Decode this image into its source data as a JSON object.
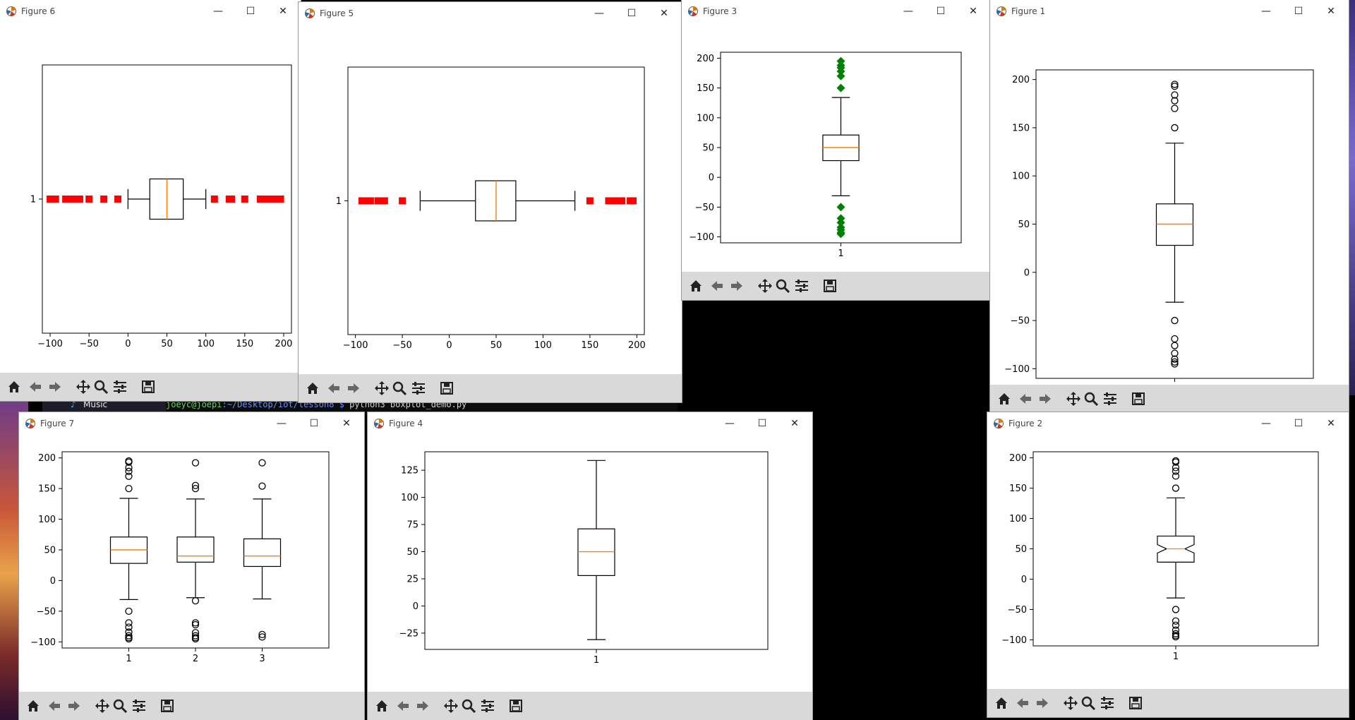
{
  "terminal": {
    "tab_label": "Music",
    "user_host": "joeyc@joepi",
    "path": ":~/Desktop/iot/lesson8 $",
    "command": " python3 boxplot_demo.py"
  },
  "windows": {
    "f6": {
      "title": "Figure 6"
    },
    "f5": {
      "title": "Figure 5"
    },
    "f3": {
      "title": "Figure 3"
    },
    "f1": {
      "title": "Figure 1"
    },
    "f7": {
      "title": "Figure 7"
    },
    "f4": {
      "title": "Figure 4"
    },
    "f2": {
      "title": "Figure 2"
    }
  },
  "controls": {
    "minimize": "—",
    "maximize": "☐",
    "close": "✕"
  },
  "toolbar_icons": [
    "home-icon",
    "back-icon",
    "forward-icon",
    "pan-icon",
    "zoom-icon",
    "configure-subplots-icon",
    "save-icon"
  ],
  "colors": {
    "median": "#ff7f0e",
    "flier_red": "#ff0000",
    "flier_green": "#008000",
    "toolbar_bg": "#d9d9d9"
  },
  "chart_data": [
    {
      "id": "f6",
      "type": "box",
      "orientation": "horizontal",
      "categories": [
        "1"
      ],
      "xlim": [
        -110,
        210
      ],
      "ticks": [
        -100,
        -50,
        0,
        50,
        100,
        150,
        200
      ],
      "boxes": [
        {
          "whisker_low": 0,
          "q1": 28,
          "median": 50,
          "q3": 71,
          "whisker_high": 100
        }
      ],
      "fliers": [
        [
          -100,
          -97,
          -93,
          -80,
          -76,
          -73,
          -69,
          -62,
          -50,
          -31,
          -13,
          111,
          130,
          133,
          150,
          170,
          175,
          178,
          181,
          184,
          190,
          196
        ]
      ],
      "flier_marker": "square",
      "flier_color": "red"
    },
    {
      "id": "f5",
      "type": "box",
      "orientation": "horizontal",
      "categories": [
        "1"
      ],
      "xlim": [
        -108,
        208
      ],
      "ticks": [
        -100,
        -50,
        0,
        50,
        100,
        150,
        200
      ],
      "boxes": [
        {
          "whisker_low": -31,
          "q1": 28,
          "median": 50,
          "q3": 71,
          "whisker_high": 134
        }
      ],
      "fliers": [
        [
          -93,
          -90,
          -84,
          -76,
          -73,
          -69,
          -50,
          150,
          170,
          173,
          176,
          178,
          181,
          184,
          193,
          196
        ]
      ],
      "flier_marker": "square",
      "flier_color": "red"
    },
    {
      "id": "f3",
      "type": "box",
      "orientation": "vertical",
      "categories": [
        "1"
      ],
      "ylim": [
        -110,
        210
      ],
      "ticks": [
        -100,
        -50,
        0,
        50,
        100,
        150,
        200
      ],
      "boxes": [
        {
          "whisker_low": -31,
          "q1": 28,
          "median": 50,
          "q3": 71,
          "whisker_high": 134
        }
      ],
      "fliers": [
        [
          195,
          188,
          184,
          178,
          170,
          150,
          -50,
          -69,
          -76,
          -84,
          -88,
          -93,
          -95
        ]
      ],
      "flier_marker": "diamond",
      "flier_color": "green"
    },
    {
      "id": "f1",
      "type": "box",
      "orientation": "vertical",
      "categories": [
        "1"
      ],
      "ylim": [
        -110,
        210
      ],
      "ticks": [
        -100,
        -50,
        0,
        50,
        100,
        150,
        200
      ],
      "boxes": [
        {
          "whisker_low": -31,
          "q1": 28,
          "median": 50,
          "q3": 71,
          "whisker_high": 134
        }
      ],
      "fliers": [
        [
          195,
          193,
          184,
          178,
          170,
          150,
          -50,
          -69,
          -76,
          -84,
          -90,
          -93,
          -95
        ]
      ],
      "flier_marker": "circle",
      "flier_color": "black"
    },
    {
      "id": "f7",
      "type": "box",
      "orientation": "vertical",
      "categories": [
        "1",
        "2",
        "3"
      ],
      "ylim": [
        -110,
        210
      ],
      "ticks": [
        -100,
        -50,
        0,
        50,
        100,
        150,
        200
      ],
      "boxes": [
        {
          "whisker_low": -31,
          "q1": 28,
          "median": 50,
          "q3": 71,
          "whisker_high": 134
        },
        {
          "whisker_low": -28,
          "q1": 30,
          "median": 40,
          "q3": 71,
          "whisker_high": 133
        },
        {
          "whisker_low": -30,
          "q1": 23,
          "median": 40,
          "q3": 68,
          "whisker_high": 133
        }
      ],
      "fliers": [
        [
          195,
          193,
          184,
          178,
          170,
          150,
          -50,
          -69,
          -76,
          -84,
          -90,
          -93,
          -95
        ],
        [
          192,
          155,
          150,
          -33,
          -69,
          -72,
          -85,
          -90,
          -93,
          -95
        ],
        [
          192,
          154,
          -88,
          -92
        ]
      ],
      "flier_marker": "circle",
      "flier_color": "black"
    },
    {
      "id": "f4",
      "type": "box",
      "orientation": "vertical",
      "categories": [
        "1"
      ],
      "ylim": [
        -40,
        142
      ],
      "ticks": [
        -25,
        0,
        25,
        50,
        75,
        100,
        125
      ],
      "boxes": [
        {
          "whisker_low": -31,
          "q1": 28,
          "median": 50,
          "q3": 71,
          "whisker_high": 134
        }
      ],
      "fliers": [
        []
      ],
      "flier_marker": "none",
      "flier_color": "black"
    },
    {
      "id": "f2",
      "type": "box",
      "orientation": "vertical",
      "notched": true,
      "categories": [
        "1"
      ],
      "ylim": [
        -110,
        210
      ],
      "ticks": [
        -100,
        -50,
        0,
        50,
        100,
        150,
        200
      ],
      "boxes": [
        {
          "whisker_low": -31,
          "q1": 28,
          "median": 50,
          "q3": 71,
          "whisker_high": 134,
          "notch_low": 43,
          "notch_high": 57
        }
      ],
      "fliers": [
        [
          195,
          193,
          184,
          178,
          170,
          150,
          -50,
          -69,
          -76,
          -84,
          -90,
          -93,
          -95
        ]
      ],
      "flier_marker": "circle",
      "flier_color": "black"
    }
  ]
}
